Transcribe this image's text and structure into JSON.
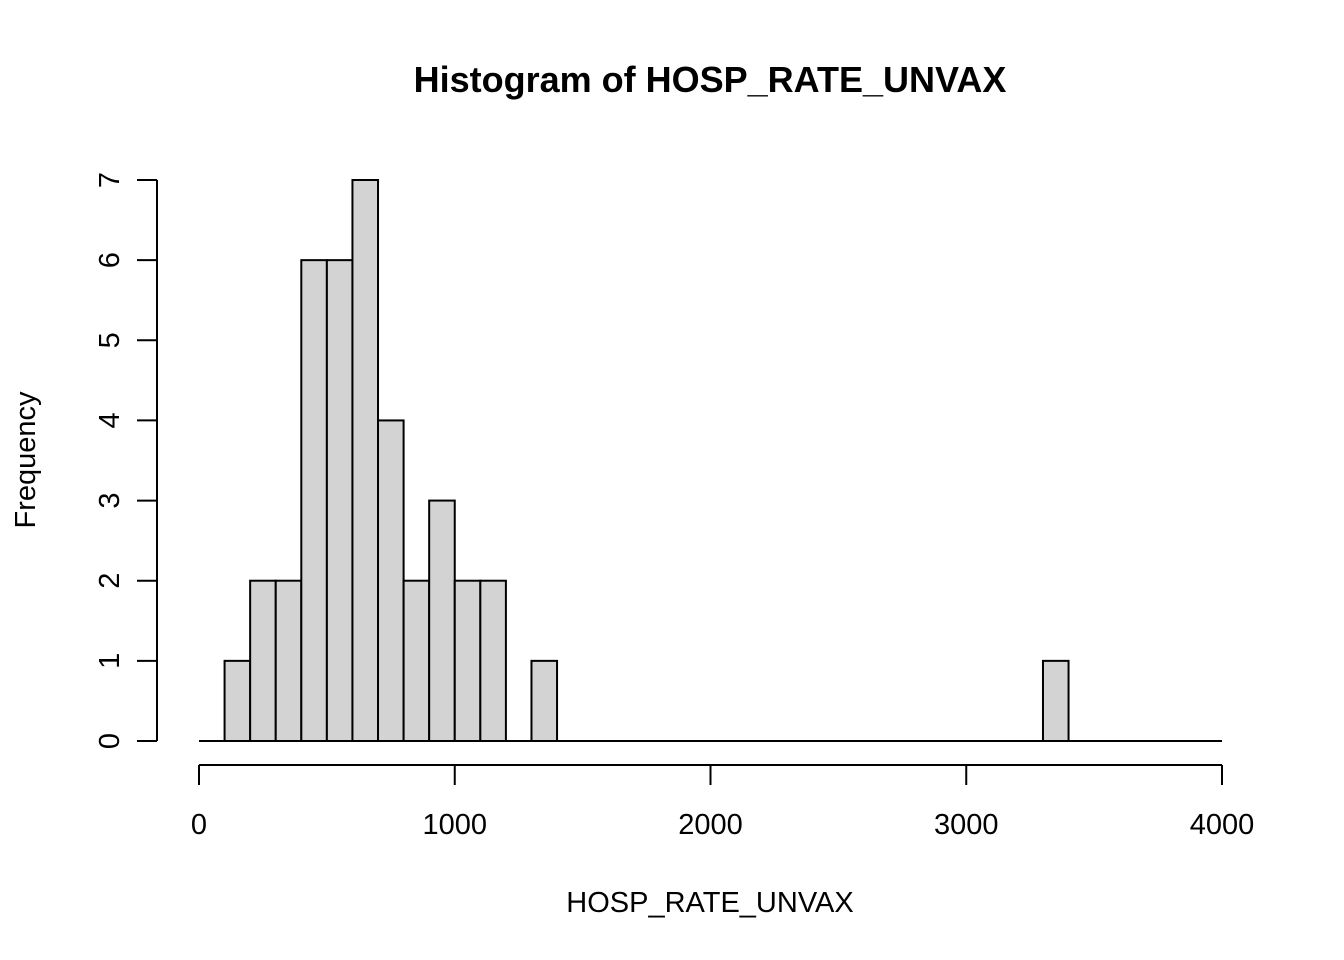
{
  "chart_data": {
    "type": "bar",
    "title": "Histogram of HOSP_RATE_UNVAX",
    "xlabel": "HOSP_RATE_UNVAX",
    "ylabel": "Frequency",
    "xlim": [
      0,
      4000
    ],
    "ylim": [
      0,
      7
    ],
    "x_ticks": [
      "0",
      "1000",
      "2000",
      "3000",
      "4000"
    ],
    "y_ticks": [
      "0",
      "1",
      "2",
      "3",
      "4",
      "5",
      "6",
      "7"
    ],
    "bin_width": 100,
    "bins": [
      {
        "x0": 0,
        "x1": 100,
        "count": 0
      },
      {
        "x0": 100,
        "x1": 200,
        "count": 1
      },
      {
        "x0": 200,
        "x1": 300,
        "count": 2
      },
      {
        "x0": 300,
        "x1": 400,
        "count": 2
      },
      {
        "x0": 400,
        "x1": 500,
        "count": 6
      },
      {
        "x0": 500,
        "x1": 600,
        "count": 6
      },
      {
        "x0": 600,
        "x1": 700,
        "count": 7
      },
      {
        "x0": 700,
        "x1": 800,
        "count": 4
      },
      {
        "x0": 800,
        "x1": 900,
        "count": 2
      },
      {
        "x0": 900,
        "x1": 1000,
        "count": 3
      },
      {
        "x0": 1000,
        "x1": 1100,
        "count": 2
      },
      {
        "x0": 1100,
        "x1": 1200,
        "count": 2
      },
      {
        "x0": 1200,
        "x1": 1300,
        "count": 0
      },
      {
        "x0": 1300,
        "x1": 1400,
        "count": 1
      },
      {
        "x0": 3300,
        "x1": 3400,
        "count": 1
      }
    ],
    "bar_color": "#d3d3d3",
    "bar_border_color": "#000000",
    "grid": false
  }
}
